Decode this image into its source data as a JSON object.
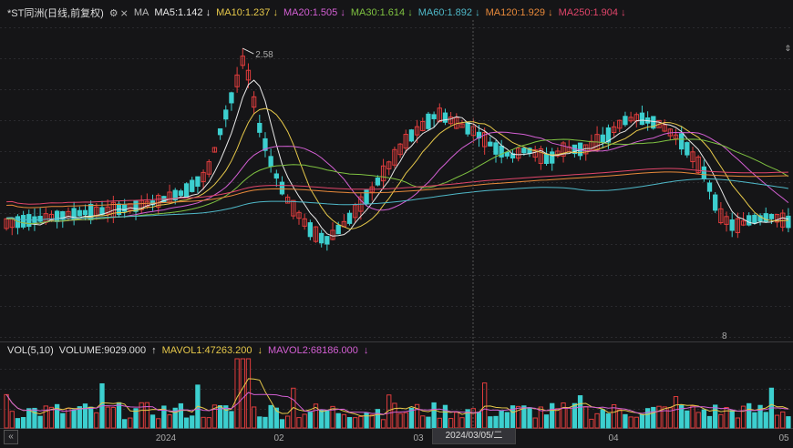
{
  "header": {
    "stock_name": "*ST同洲",
    "period": "(日线,前复权)",
    "settings_icon": "gear-icon",
    "ma_toggle_label": "MA",
    "ma_items": [
      {
        "label": "MA5:1.142",
        "arrow": "↓",
        "color": "#e8e8e8"
      },
      {
        "label": "MA10:1.237",
        "arrow": "↓",
        "color": "#e6c84a"
      },
      {
        "label": "MA20:1.505",
        "arrow": "↓",
        "color": "#d35fd3"
      },
      {
        "label": "MA30:1.614",
        "arrow": "↓",
        "color": "#7fc241"
      },
      {
        "label": "MA60:1.892",
        "arrow": "↓",
        "color": "#4fb8c8"
      },
      {
        "label": "MA120:1.929",
        "arrow": "↓",
        "color": "#e8893a"
      },
      {
        "label": "MA250:1.904",
        "arrow": "↓",
        "color": "#e0456a"
      }
    ]
  },
  "volume_panel": {
    "indicator": "VOL(5,10)",
    "volume_label": "VOLUME:9029.000",
    "volume_arrow": "↑",
    "mavol1_label": "MAVOL1:47263.200",
    "mavol1_arrow": "↓",
    "mavol2_label": "MAVOL2:68186.000",
    "mavol2_arrow": "↓"
  },
  "annotations": {
    "high_label": "2.58",
    "marker_glyph": "8"
  },
  "date_axis": {
    "labels": [
      "2024",
      "02",
      "03",
      "04",
      "05"
    ],
    "crosshair_date": "2024/03/05/二"
  },
  "colors": {
    "up": "#e03d3d",
    "down": "#3ccfcf",
    "background": "#151517"
  },
  "chart_data": {
    "type": "candlestick",
    "candles_count": 140,
    "price_high": 2.58,
    "ma_last": {
      "MA5": 1.142,
      "MA10": 1.237,
      "MA20": 1.505,
      "MA30": 1.614,
      "MA60": 1.892,
      "MA120": 1.929,
      "MA250": 1.904
    },
    "mavol_last": {
      "MAVOL1": 47263.2,
      "MAVOL2": 68186.0
    },
    "last_volume": 9029.0
  }
}
